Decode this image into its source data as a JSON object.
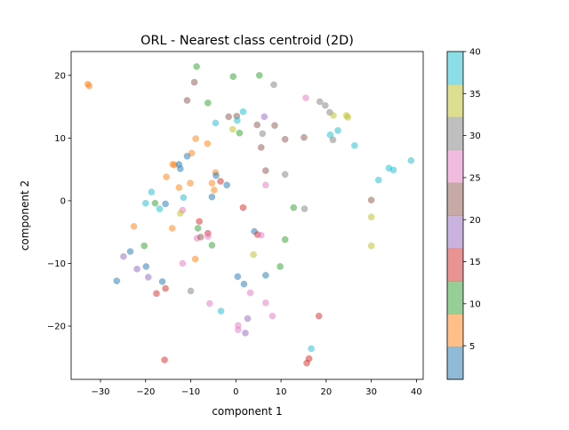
{
  "chart_data": {
    "type": "scatter",
    "title": "ORL - Nearest class centroid (2D)",
    "xlabel": "component 1",
    "ylabel": "component 2",
    "xlim": [
      -36.5,
      41.5
    ],
    "ylim": [
      -28.5,
      23.8
    ],
    "xticks": [
      -30,
      -20,
      -10,
      0,
      10,
      20,
      30,
      40
    ],
    "yticks": [
      -20,
      -10,
      0,
      10,
      20
    ],
    "xtick_labels": [
      "−30",
      "−20",
      "−10",
      "0",
      "10",
      "20",
      "30",
      "40"
    ],
    "ytick_labels": [
      "−20",
      "−10",
      "0",
      "10",
      "20"
    ],
    "grid": false,
    "colorbar": {
      "range": [
        1,
        40
      ],
      "ticks": [
        5,
        10,
        15,
        20,
        25,
        30,
        35,
        40
      ],
      "tick_labels": [
        "5",
        "10",
        "15",
        "20",
        "25",
        "30",
        "35",
        "40"
      ],
      "colors": [
        "#1f77b4",
        "#ff7f0e",
        "#2ca02c",
        "#d62728",
        "#9467bd",
        "#8c564b",
        "#e377c2",
        "#7f7f7f",
        "#bcbd22",
        "#17becf"
      ]
    },
    "point_alpha": 0.5,
    "points": [
      {
        "x": -32.8,
        "y": 18.6,
        "c": 6
      },
      {
        "x": -32.5,
        "y": 18.3,
        "c": 6
      },
      {
        "x": -8.7,
        "y": 21.4,
        "c": 10
      },
      {
        "x": -0.6,
        "y": 19.8,
        "c": 10
      },
      {
        "x": 5.2,
        "y": 20.0,
        "c": 10
      },
      {
        "x": -9.2,
        "y": 18.9,
        "c": 21
      },
      {
        "x": 8.4,
        "y": 18.5,
        "c": 30
      },
      {
        "x": -10.8,
        "y": 16.0,
        "c": 21
      },
      {
        "x": -6.2,
        "y": 15.6,
        "c": 10
      },
      {
        "x": 15.5,
        "y": 16.4,
        "c": 28
      },
      {
        "x": 18.6,
        "y": 15.8,
        "c": 29
      },
      {
        "x": 19.8,
        "y": 15.2,
        "c": 30
      },
      {
        "x": 1.6,
        "y": 14.2,
        "c": 40
      },
      {
        "x": 20.8,
        "y": 14.1,
        "c": 29
      },
      {
        "x": 21.6,
        "y": 13.6,
        "c": 33
      },
      {
        "x": 24.5,
        "y": 13.6,
        "c": 34
      },
      {
        "x": 24.8,
        "y": 13.3,
        "c": 35
      },
      {
        "x": -1.6,
        "y": 13.4,
        "c": 21
      },
      {
        "x": 0.2,
        "y": 13.5,
        "c": 22
      },
      {
        "x": 0.3,
        "y": 12.8,
        "c": 38
      },
      {
        "x": 6.3,
        "y": 13.4,
        "c": 20
      },
      {
        "x": -4.5,
        "y": 12.4,
        "c": 39
      },
      {
        "x": 4.7,
        "y": 12.1,
        "c": 21
      },
      {
        "x": 8.6,
        "y": 12.0,
        "c": 21
      },
      {
        "x": -0.7,
        "y": 11.4,
        "c": 34
      },
      {
        "x": 22.6,
        "y": 11.2,
        "c": 39
      },
      {
        "x": 0.8,
        "y": 10.8,
        "c": 10
      },
      {
        "x": 5.9,
        "y": 10.7,
        "c": 29
      },
      {
        "x": 20.9,
        "y": 10.5,
        "c": 39
      },
      {
        "x": -8.9,
        "y": 9.9,
        "c": 6
      },
      {
        "x": 10.9,
        "y": 9.8,
        "c": 22
      },
      {
        "x": 15.1,
        "y": 10.1,
        "c": 22
      },
      {
        "x": 21.5,
        "y": 9.7,
        "c": 30
      },
      {
        "x": -6.3,
        "y": 9.1,
        "c": 6
      },
      {
        "x": 26.3,
        "y": 8.8,
        "c": 40
      },
      {
        "x": 5.6,
        "y": 8.5,
        "c": 21
      },
      {
        "x": -9.8,
        "y": 7.6,
        "c": 6
      },
      {
        "x": -10.8,
        "y": 7.1,
        "c": 1
      },
      {
        "x": 38.8,
        "y": 6.4,
        "c": 39
      },
      {
        "x": -14.0,
        "y": 5.8,
        "c": 5
      },
      {
        "x": -13.6,
        "y": 5.7,
        "c": 6
      },
      {
        "x": -12.6,
        "y": 5.8,
        "c": 2
      },
      {
        "x": -12.3,
        "y": 5.1,
        "c": 1
      },
      {
        "x": 33.9,
        "y": 5.2,
        "c": 40
      },
      {
        "x": 34.9,
        "y": 4.9,
        "c": 39
      },
      {
        "x": 6.6,
        "y": 4.8,
        "c": 21
      },
      {
        "x": -4.5,
        "y": 4.5,
        "c": 7
      },
      {
        "x": -4.4,
        "y": 4.0,
        "c": 2
      },
      {
        "x": 10.9,
        "y": 4.2,
        "c": 29
      },
      {
        "x": -15.4,
        "y": 3.8,
        "c": 6
      },
      {
        "x": 31.6,
        "y": 3.3,
        "c": 39
      },
      {
        "x": -3.4,
        "y": 3.1,
        "c": 16
      },
      {
        "x": -5.3,
        "y": 2.8,
        "c": 7
      },
      {
        "x": -10.1,
        "y": 2.8,
        "c": 6
      },
      {
        "x": -2.0,
        "y": 2.5,
        "c": 2
      },
      {
        "x": 6.6,
        "y": 2.5,
        "c": 25
      },
      {
        "x": -12.6,
        "y": 2.1,
        "c": 6
      },
      {
        "x": -4.8,
        "y": 1.7,
        "c": 7
      },
      {
        "x": -18.7,
        "y": 1.4,
        "c": 39
      },
      {
        "x": -11.6,
        "y": 0.5,
        "c": 38
      },
      {
        "x": -5.3,
        "y": 0.6,
        "c": 2
      },
      {
        "x": 30.0,
        "y": 0.1,
        "c": 22
      },
      {
        "x": -20.0,
        "y": -0.4,
        "c": 39
      },
      {
        "x": -17.9,
        "y": -0.4,
        "c": 10
      },
      {
        "x": -15.6,
        "y": -0.5,
        "c": 1
      },
      {
        "x": 1.6,
        "y": -1.1,
        "c": 16
      },
      {
        "x": 12.8,
        "y": -1.1,
        "c": 10
      },
      {
        "x": 15.2,
        "y": -1.3,
        "c": 30
      },
      {
        "x": -16.9,
        "y": -1.3,
        "c": 39
      },
      {
        "x": -11.8,
        "y": -1.5,
        "c": 25
      },
      {
        "x": -12.3,
        "y": -2.0,
        "c": 34
      },
      {
        "x": 30.0,
        "y": -2.6,
        "c": 34
      },
      {
        "x": -8.1,
        "y": -3.3,
        "c": 16
      },
      {
        "x": -22.6,
        "y": -4.1,
        "c": 6
      },
      {
        "x": -14.1,
        "y": -4.4,
        "c": 6
      },
      {
        "x": -8.4,
        "y": -4.4,
        "c": 10
      },
      {
        "x": 4.1,
        "y": -4.9,
        "c": 1
      },
      {
        "x": 4.8,
        "y": -5.4,
        "c": 16
      },
      {
        "x": 5.6,
        "y": -5.5,
        "c": 25
      },
      {
        "x": -6.2,
        "y": -5.2,
        "c": 16
      },
      {
        "x": -8.6,
        "y": -6.0,
        "c": 25
      },
      {
        "x": -7.8,
        "y": -5.8,
        "c": 22
      },
      {
        "x": -6.2,
        "y": -5.7,
        "c": 25
      },
      {
        "x": 10.9,
        "y": -6.2,
        "c": 10
      },
      {
        "x": -5.3,
        "y": -7.1,
        "c": 10
      },
      {
        "x": -20.3,
        "y": -7.2,
        "c": 10
      },
      {
        "x": 30.0,
        "y": -7.2,
        "c": 34
      },
      {
        "x": -23.4,
        "y": -8.1,
        "c": 1
      },
      {
        "x": 3.9,
        "y": -8.6,
        "c": 35
      },
      {
        "x": -24.9,
        "y": -8.9,
        "c": 20
      },
      {
        "x": -9.0,
        "y": -9.3,
        "c": 6
      },
      {
        "x": -11.8,
        "y": -10.0,
        "c": 25
      },
      {
        "x": -19.9,
        "y": -10.5,
        "c": 1
      },
      {
        "x": 9.8,
        "y": -10.5,
        "c": 10
      },
      {
        "x": -21.9,
        "y": -10.9,
        "c": 20
      },
      {
        "x": 0.4,
        "y": -12.1,
        "c": 1
      },
      {
        "x": 6.6,
        "y": -11.9,
        "c": 1
      },
      {
        "x": -19.4,
        "y": -12.2,
        "c": 20
      },
      {
        "x": -26.4,
        "y": -12.8,
        "c": 1
      },
      {
        "x": -16.3,
        "y": -12.9,
        "c": 1
      },
      {
        "x": 1.8,
        "y": -13.3,
        "c": 1
      },
      {
        "x": -15.6,
        "y": -14.0,
        "c": 16
      },
      {
        "x": -17.6,
        "y": -14.8,
        "c": 16
      },
      {
        "x": -10.0,
        "y": -14.4,
        "c": 30
      },
      {
        "x": 3.2,
        "y": -14.7,
        "c": 25
      },
      {
        "x": -5.8,
        "y": -16.4,
        "c": 25
      },
      {
        "x": 6.6,
        "y": -16.3,
        "c": 25
      },
      {
        "x": -3.3,
        "y": -17.6,
        "c": 39
      },
      {
        "x": 18.4,
        "y": -18.4,
        "c": 16
      },
      {
        "x": 8.1,
        "y": -18.4,
        "c": 25
      },
      {
        "x": 2.6,
        "y": -18.8,
        "c": 20
      },
      {
        "x": 0.5,
        "y": -19.9,
        "c": 25
      },
      {
        "x": 0.5,
        "y": -20.6,
        "c": 25
      },
      {
        "x": 2.1,
        "y": -21.1,
        "c": 20
      },
      {
        "x": 16.7,
        "y": -23.6,
        "c": 39
      },
      {
        "x": -15.8,
        "y": -25.4,
        "c": 16
      },
      {
        "x": 16.2,
        "y": -25.2,
        "c": 16
      },
      {
        "x": 15.7,
        "y": -25.9,
        "c": 16
      }
    ]
  }
}
